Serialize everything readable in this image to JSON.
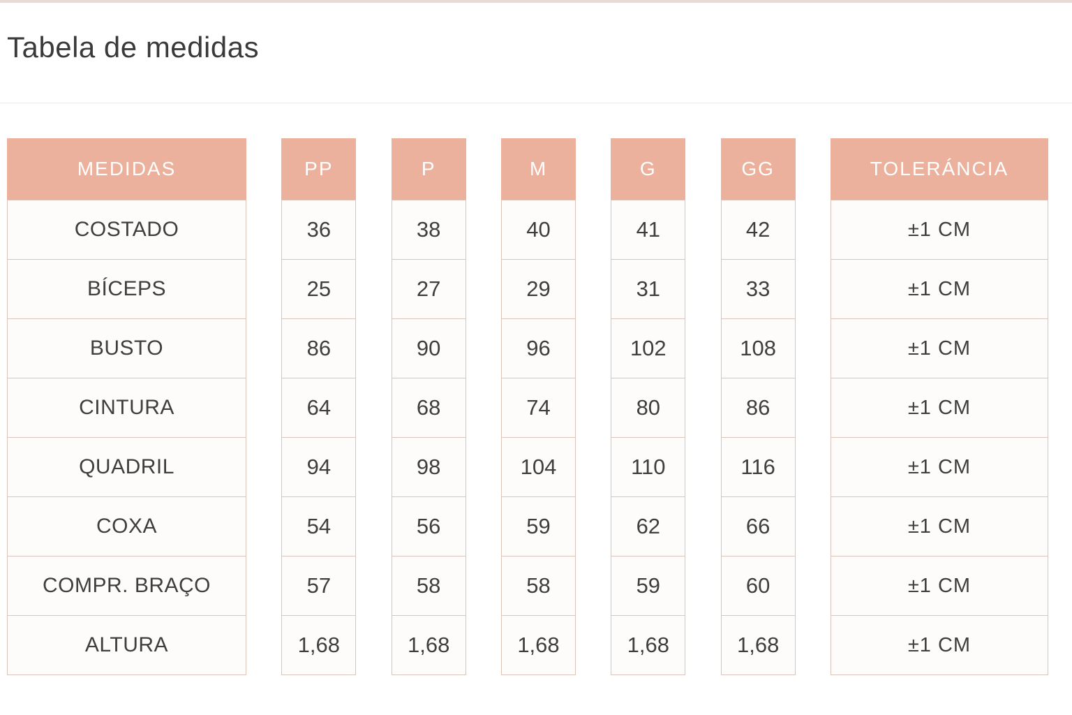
{
  "title": "Tabela de medidas",
  "chart_data": {
    "type": "table",
    "title": "Tabela de medidas",
    "columns": [
      "MEDIDAS",
      "PP",
      "P",
      "M",
      "G",
      "GG",
      "TOLERÁNCIA"
    ],
    "rows": [
      [
        "COSTADO",
        "36",
        "38",
        "40",
        "41",
        "42",
        "±1 CM"
      ],
      [
        "BÍCEPS",
        "25",
        "27",
        "29",
        "31",
        "33",
        "±1 CM"
      ],
      [
        "BUSTO",
        "86",
        "90",
        "96",
        "102",
        "108",
        "±1 CM"
      ],
      [
        "CINTURA",
        "64",
        "68",
        "74",
        "80",
        "86",
        "±1 CM"
      ],
      [
        "QUADRIL",
        "94",
        "98",
        "104",
        "110",
        "116",
        "±1 CM"
      ],
      [
        "COXA",
        "54",
        "56",
        "59",
        "62",
        "66",
        "±1 CM"
      ],
      [
        "COMPR. BRAÇO",
        "57",
        "58",
        "58",
        "59",
        "60",
        "±1 CM"
      ],
      [
        "ALTURA",
        "1,68",
        "1,68",
        "1,68",
        "1,68",
        "1,68",
        "±1 CM"
      ]
    ]
  },
  "colors": {
    "header_bg": "#ECB19C",
    "header_text": "#FFFFFF",
    "cell_border": "#DBC4B9",
    "cell_bg": "#FDFCFB",
    "body_text": "#3E3E3E"
  }
}
